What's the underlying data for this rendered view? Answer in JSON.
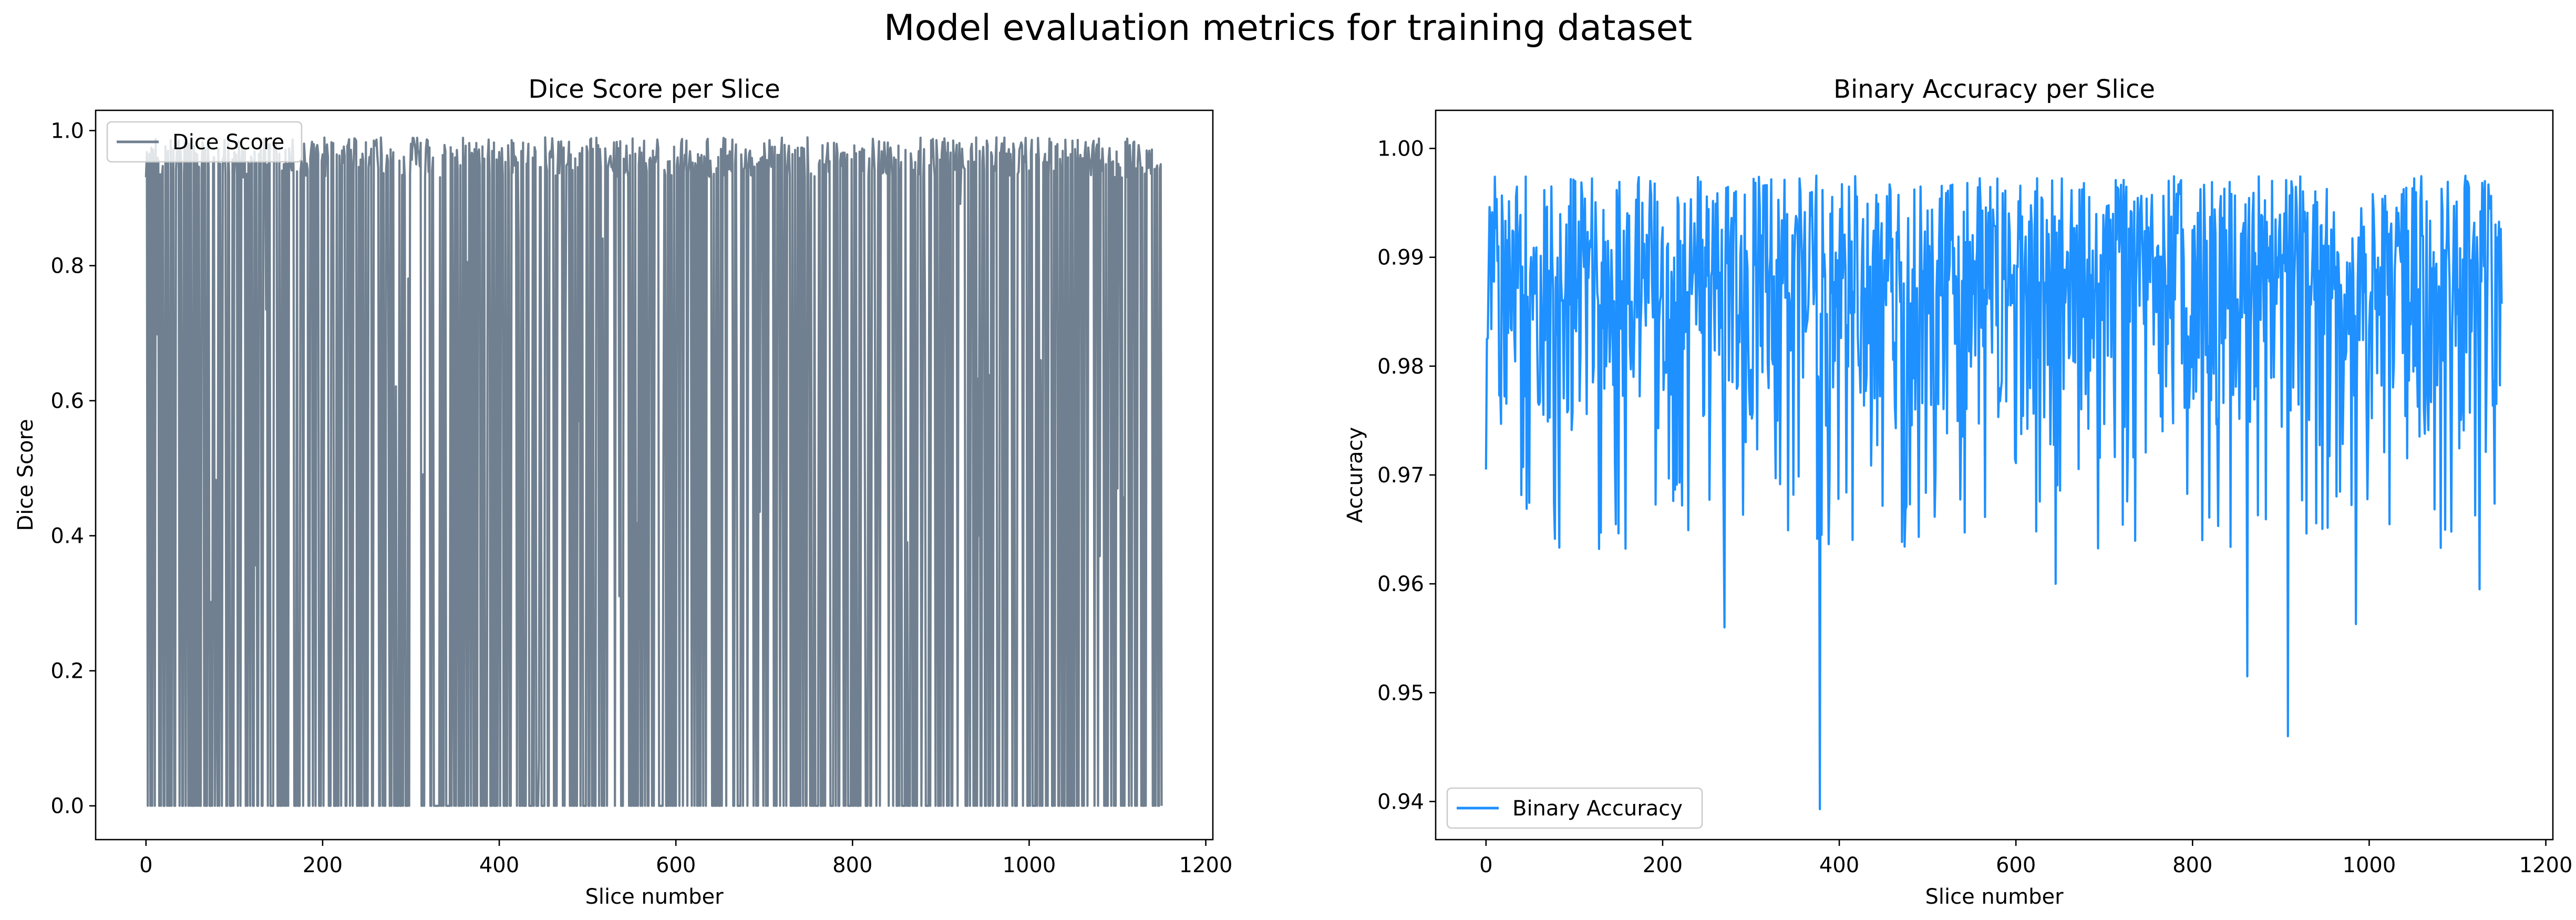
{
  "figure": {
    "title": "Model evaluation metrics for training dataset"
  },
  "chart_data": [
    {
      "type": "line",
      "title": "Dice Score per Slice",
      "xlabel": "Slice number",
      "ylabel": "Dice Score",
      "xlim": [
        -57,
        1208
      ],
      "ylim": [
        -0.05,
        1.03
      ],
      "xticks": [
        0,
        200,
        400,
        600,
        800,
        1000,
        1200
      ],
      "xtick_labels": [
        "0",
        "200",
        "400",
        "600",
        "800",
        "1000",
        "1200"
      ],
      "yticks": [
        0.0,
        0.2,
        0.4,
        0.6,
        0.8,
        1.0
      ],
      "ytick_labels": [
        "0.0",
        "0.2",
        "0.4",
        "0.6",
        "0.8",
        "1.0"
      ],
      "grid": false,
      "legend": "top-left",
      "n_points": 1151,
      "series": [
        {
          "name": "Dice Score",
          "color": "#708090",
          "value_range": [
            0.0,
            0.99
          ],
          "typical_high": 0.97,
          "typical_low": 0.0,
          "notable_values": [
            {
              "x": 80,
              "y": 0.27
            },
            {
              "x": 85,
              "y": 0.52
            },
            {
              "x": 30,
              "y": 0.9
            },
            {
              "x": 275,
              "y": 0.43
            },
            {
              "x": 445,
              "y": 0.07
            },
            {
              "x": 1013,
              "y": 0.66
            },
            {
              "x": 1100,
              "y": 0.47
            }
          ]
        }
      ]
    },
    {
      "type": "line",
      "title": "Binary Accuracy per Slice",
      "xlabel": "Slice number",
      "ylabel": "Accuracy",
      "xlim": [
        -57,
        1208
      ],
      "ylim": [
        0.9365,
        1.0035
      ],
      "xticks": [
        0,
        200,
        400,
        600,
        800,
        1000,
        1200
      ],
      "xtick_labels": [
        "0",
        "200",
        "400",
        "600",
        "800",
        "1000",
        "1200"
      ],
      "yticks": [
        0.94,
        0.95,
        0.96,
        0.97,
        0.98,
        0.99,
        1.0
      ],
      "ytick_labels": [
        "0.94",
        "0.95",
        "0.96",
        "0.97",
        "0.98",
        "0.99",
        "1.00"
      ],
      "grid": false,
      "legend": "bottom-left",
      "n_points": 1151,
      "series": [
        {
          "name": "Binary Accuracy",
          "color": "#1e90ff",
          "value_range": [
            0.9393,
            0.9998
          ],
          "typical_range": [
            0.985,
            0.997
          ],
          "notable_values": [
            {
              "x": 0,
              "y": 0.9705
            },
            {
              "x": 270,
              "y": 0.956
            },
            {
              "x": 378,
              "y": 0.9393
            },
            {
              "x": 645,
              "y": 0.96
            },
            {
              "x": 862,
              "y": 0.9515
            },
            {
              "x": 908,
              "y": 0.946
            },
            {
              "x": 985,
              "y": 0.9563
            },
            {
              "x": 1125,
              "y": 0.9595
            }
          ]
        }
      ]
    }
  ]
}
